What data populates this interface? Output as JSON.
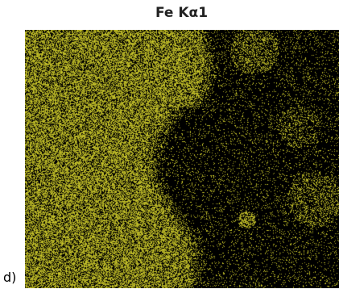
{
  "panel": {
    "title": "Fe Kα1",
    "label": "d)"
  },
  "map": {
    "element": "Fe",
    "line": "Kα1",
    "color": "#c9c62a",
    "background": "#000000"
  }
}
